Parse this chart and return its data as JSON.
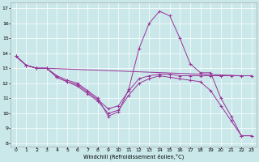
{
  "xlabel": "Windchill (Refroidissement éolien,°C)",
  "xlim": [
    0,
    23
  ],
  "ylim": [
    8,
    17
  ],
  "yticks": [
    8,
    9,
    10,
    11,
    12,
    13,
    14,
    15,
    16,
    17
  ],
  "xticks": [
    0,
    1,
    2,
    3,
    4,
    5,
    6,
    7,
    8,
    9,
    10,
    11,
    12,
    13,
    14,
    15,
    16,
    17,
    18,
    19,
    20,
    21,
    22,
    23
  ],
  "background_color": "#cae8ea",
  "line_color": "#993399",
  "grid_color": "#ffffff",
  "lines": [
    {
      "x": [
        0,
        1,
        2,
        3,
        4,
        5,
        6,
        7,
        8,
        9,
        10,
        11,
        12,
        13,
        14,
        15,
        16,
        17,
        18,
        19,
        20,
        21,
        22,
        23
      ],
      "y": [
        13.8,
        13.2,
        13.0,
        13.0,
        12.5,
        12.2,
        12.0,
        11.5,
        11.0,
        9.8,
        10.1,
        11.6,
        14.3,
        16.0,
        16.8,
        16.5,
        15.0,
        13.3,
        12.7,
        12.7,
        11.0,
        9.8,
        8.5,
        8.5
      ]
    },
    {
      "x": [
        0,
        1,
        2,
        3,
        22,
        23
      ],
      "y": [
        13.8,
        13.2,
        13.0,
        13.0,
        12.5,
        12.5
      ]
    },
    {
      "x": [
        0,
        1,
        2,
        3,
        4,
        5,
        6,
        7,
        8,
        9,
        10,
        11,
        12,
        13,
        14,
        15,
        16,
        17,
        18,
        19,
        20,
        21,
        22,
        23
      ],
      "y": [
        13.8,
        13.2,
        13.0,
        13.0,
        12.4,
        12.1,
        11.9,
        11.4,
        10.9,
        10.3,
        10.5,
        11.5,
        12.3,
        12.5,
        12.6,
        12.6,
        12.5,
        12.5,
        12.5,
        12.5,
        12.5,
        12.5,
        12.5,
        12.5
      ]
    },
    {
      "x": [
        0,
        1,
        2,
        3,
        4,
        5,
        6,
        7,
        8,
        9,
        10,
        11,
        12,
        13,
        14,
        15,
        16,
        17,
        18,
        19,
        20,
        21,
        22,
        23
      ],
      "y": [
        13.8,
        13.2,
        13.0,
        13.0,
        12.4,
        12.1,
        11.8,
        11.3,
        10.8,
        10.0,
        10.2,
        11.2,
        12.0,
        12.3,
        12.5,
        12.4,
        12.3,
        12.2,
        12.1,
        11.5,
        10.5,
        9.5,
        8.5,
        8.5
      ]
    }
  ]
}
